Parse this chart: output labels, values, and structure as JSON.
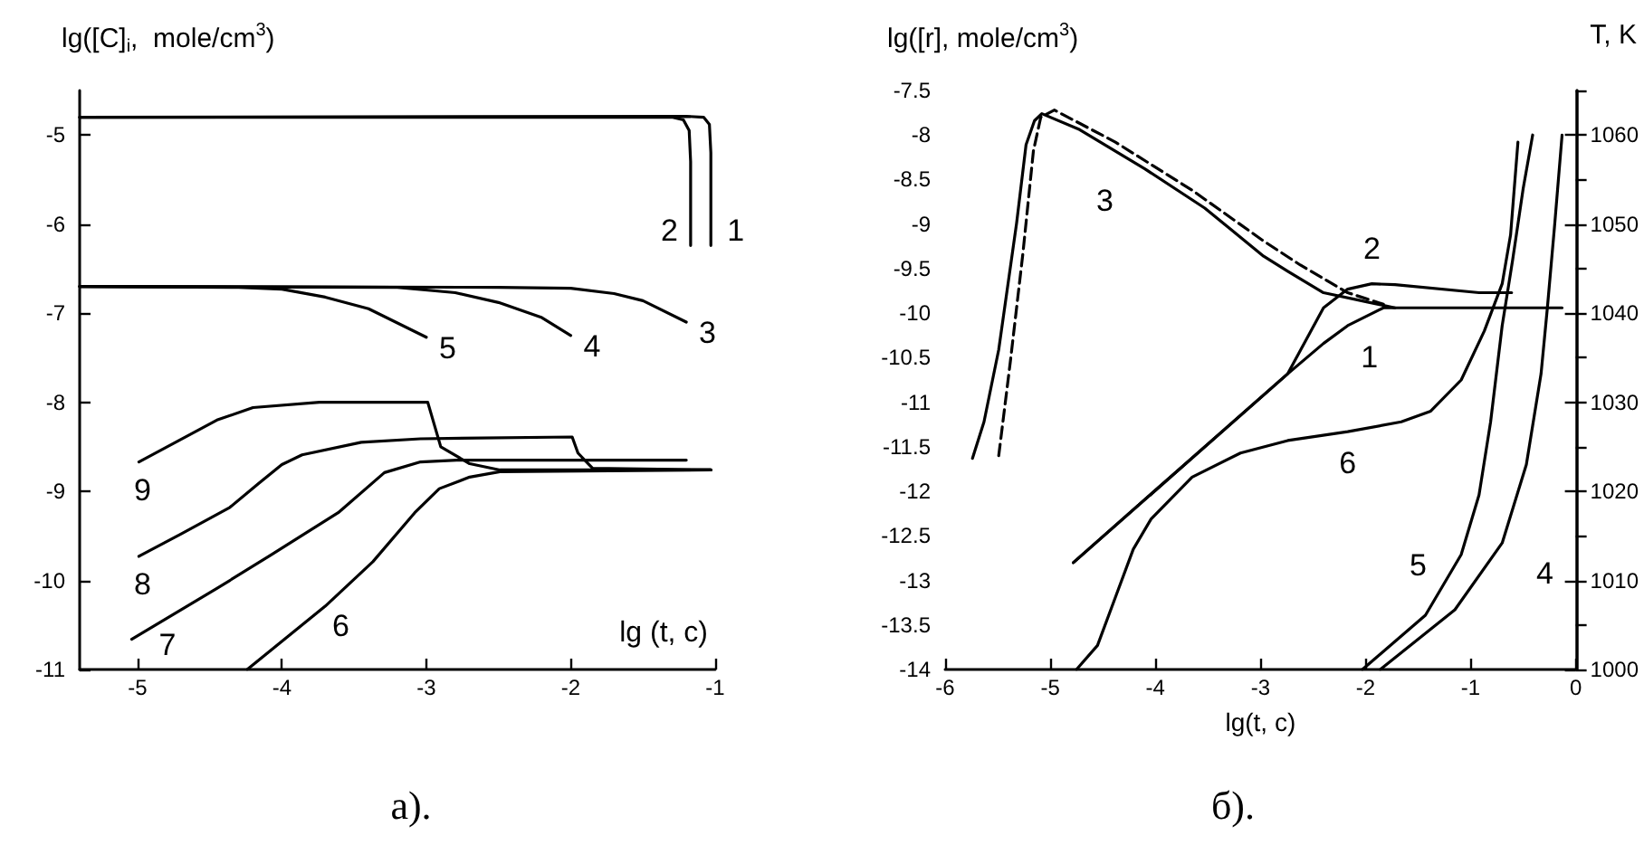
{
  "chart_data": [
    {
      "type": "line",
      "title": "а).",
      "xlabel": "lg (t, c)",
      "ylabel": "lg([C]$_{i}$,  mole/cm$^{3}$)",
      "xlim": [
        -5.4,
        -1
      ],
      "ylim": [
        -11,
        -4.5
      ],
      "xticks": [
        -5,
        -4,
        -3,
        -2,
        -1
      ],
      "yticks": [
        -11,
        -10,
        -9,
        -8,
        -7,
        -6,
        -5
      ],
      "grid": false,
      "legend": false,
      "series": [
        {
          "name": "1",
          "color": "#000000",
          "x": [
            -5.4,
            -1.2,
            -1.08,
            -1.04,
            -1.03,
            -1.03
          ],
          "values": [
            -4.8,
            -4.79,
            -4.8,
            -4.88,
            -5.2,
            -6.24
          ]
        },
        {
          "name": "2",
          "color": "#000000",
          "x": [
            -5.4,
            -1.3,
            -1.22,
            -1.18,
            -1.17,
            -1.17
          ],
          "values": [
            -4.8,
            -4.8,
            -4.83,
            -4.95,
            -5.3,
            -6.24
          ]
        },
        {
          "name": "3",
          "color": "#000000",
          "x": [
            -5.4,
            -2.5,
            -2.0,
            -1.7,
            -1.5,
            -1.2
          ],
          "values": [
            -6.7,
            -6.71,
            -6.72,
            -6.78,
            -6.86,
            -7.1
          ]
        },
        {
          "name": "4",
          "color": "#000000",
          "x": [
            -5.4,
            -3.2,
            -2.8,
            -2.5,
            -2.2,
            -2.0
          ],
          "values": [
            -6.7,
            -6.71,
            -6.77,
            -6.88,
            -7.05,
            -7.25
          ]
        },
        {
          "name": "5",
          "color": "#000000",
          "x": [
            -5.4,
            -4.3,
            -4.0,
            -3.7,
            -3.4,
            -3.0
          ],
          "values": [
            -6.7,
            -6.71,
            -6.73,
            -6.82,
            -6.95,
            -7.27
          ]
        },
        {
          "name": "6",
          "color": "#000000",
          "x": [
            -4.24,
            -3.7,
            -3.37,
            -3.08,
            -2.91,
            -2.7,
            -2.49,
            -1.03
          ],
          "values": [
            -11.0,
            -10.29,
            -9.79,
            -9.24,
            -8.97,
            -8.84,
            -8.78,
            -8.76
          ]
        },
        {
          "name": "7",
          "color": "#000000",
          "x": [
            -5.04,
            -4.45,
            -4.08,
            -3.61,
            -3.29,
            -3.04,
            -2.79,
            -1.2
          ],
          "values": [
            -10.66,
            -10.09,
            -9.72,
            -9.24,
            -8.79,
            -8.67,
            -8.65,
            -8.65
          ]
        },
        {
          "name": "8",
          "color": "#000000",
          "x": [
            -4.99,
            -4.7,
            -4.36,
            -4.16,
            -4.0,
            -3.86,
            -3.45,
            -3.04,
            -1.99,
            -1.95,
            -1.85,
            -1.03
          ],
          "values": [
            -9.73,
            -9.48,
            -9.18,
            -8.91,
            -8.7,
            -8.59,
            -8.45,
            -8.41,
            -8.39,
            -8.57,
            -8.74,
            -8.76
          ]
        },
        {
          "name": "9",
          "color": "#000000",
          "x": [
            -4.99,
            -4.45,
            -4.2,
            -3.74,
            -2.99,
            -2.9,
            -2.7,
            -2.49,
            -1.03
          ],
          "values": [
            -8.67,
            -8.2,
            -8.06,
            -8.0,
            -8.0,
            -8.5,
            -8.69,
            -8.76,
            -8.76
          ]
        }
      ]
    },
    {
      "type": "line",
      "title": "б).",
      "xlabel": "lg(t, c)",
      "ylabel": "lg([r], mole/cm$^{3}$)",
      "y2label": "T, K",
      "xlim": [
        -6,
        0
      ],
      "ylim": [
        -14,
        -7.5
      ],
      "xticks": [
        -6,
        -5,
        -4,
        -3,
        -2,
        -1,
        0
      ],
      "yticks": [
        -14,
        -13.5,
        -13,
        -12.5,
        -12,
        -11.5,
        -11,
        -10.5,
        -10,
        -9.5,
        -9,
        -8.5,
        -8,
        -7.5
      ],
      "y2lim": [
        1000,
        1065
      ],
      "y2ticks": [
        1000,
        1010,
        1020,
        1030,
        1040,
        1050,
        1060
      ],
      "grid": false,
      "legend": false,
      "series": [
        {
          "name": "1",
          "color": "#000000",
          "x": [
            -4.78,
            -2.74,
            -2.4,
            -2.17,
            -1.83,
            -0.13
          ],
          "values": [
            -12.8,
            -10.68,
            -10.34,
            -10.14,
            -9.94,
            -9.94
          ]
        },
        {
          "name": "2",
          "color": "#000000",
          "x": [
            -4.78,
            -2.74,
            -2.4,
            -2.17,
            -1.94,
            -1.72,
            -0.92,
            -0.61
          ],
          "values": [
            -12.8,
            -10.68,
            -9.94,
            -9.73,
            -9.67,
            -9.68,
            -9.77,
            -9.77
          ]
        },
        {
          "name": "3",
          "color": "#000000",
          "x": [
            -5.74,
            -5.63,
            -5.49,
            -5.32,
            -5.23,
            -5.15,
            -5.08,
            -4.72,
            -4.1,
            -3.53,
            -2.97,
            -2.74,
            -2.4,
            -2.0,
            -1.72
          ],
          "values": [
            -11.63,
            -11.22,
            -10.41,
            -8.99,
            -8.11,
            -7.84,
            -7.76,
            -7.94,
            -8.38,
            -8.82,
            -9.36,
            -9.53,
            -9.77,
            -9.87,
            -9.94
          ]
        },
        {
          "color": "#000000",
          "line_style": "dashed",
          "x": [
            -5.49,
            -5.38,
            -5.26,
            -5.16,
            -5.09,
            -4.96,
            -4.38,
            -3.65,
            -2.97,
            -2.62,
            -2.17,
            -1.83
          ],
          "values": [
            -11.6,
            -10.55,
            -9.33,
            -8.18,
            -7.8,
            -7.72,
            -8.08,
            -8.62,
            -9.19,
            -9.46,
            -9.77,
            -9.9
          ]
        },
        {
          "name": "4",
          "color": "#000000",
          "x": [
            -1.86,
            -1.15,
            -0.7,
            -0.47,
            -0.33,
            -0.27,
            -0.2,
            -0.13
          ],
          "values": [
            -14.0,
            -13.33,
            -12.58,
            -11.7,
            -10.68,
            -9.94,
            -9.0,
            -8.0
          ]
        },
        {
          "name": "5",
          "color": "#000000",
          "x": [
            -2.03,
            -1.43,
            -1.09,
            -0.92,
            -0.81,
            -0.7,
            -0.6,
            -0.5,
            -0.41
          ],
          "values": [
            -14.0,
            -13.39,
            -12.71,
            -12.04,
            -11.22,
            -10.14,
            -9.4,
            -8.6,
            -8.0
          ]
        },
        {
          "name": "6",
          "color": "#000000",
          "x": [
            -4.75,
            -4.55,
            -4.38,
            -4.21,
            -4.04,
            -3.65,
            -3.19,
            -2.74,
            -2.17,
            -1.66,
            -1.38,
            -1.09,
            -0.87,
            -0.7,
            -0.62,
            -0.55
          ],
          "values": [
            -14.0,
            -13.73,
            -13.19,
            -12.65,
            -12.31,
            -11.84,
            -11.57,
            -11.43,
            -11.33,
            -11.22,
            -11.1,
            -10.75,
            -10.2,
            -9.67,
            -9.12,
            -8.08
          ]
        }
      ]
    }
  ]
}
